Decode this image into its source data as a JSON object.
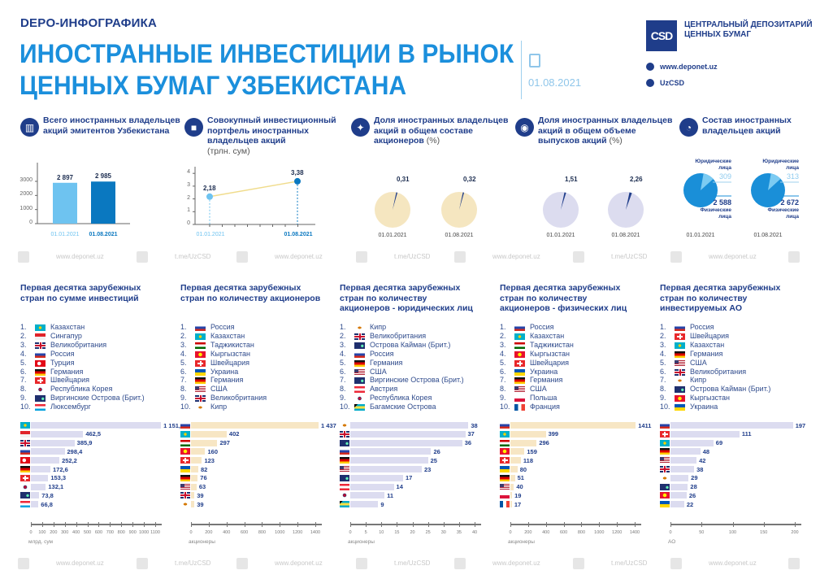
{
  "header": {
    "kicker": "DEPO-ИНФОГРАФИКА",
    "title_line1": "ИНОСТРАННЫЕ ИНВЕСТИЦИИ В РЫНОК",
    "title_line2": "ЦЕННЫХ БУМАГ УЗБЕКИСТАНА",
    "date": "01.08.2021",
    "logo_text": "CSD",
    "org_line1": "ЦЕНТРАЛЬНЫЙ ДЕПОЗИТАРИЙ",
    "org_line2": "ЦЕННЫХ БУМАГ",
    "website": "www.deponet.uz",
    "telegram": "UzCSD"
  },
  "watermark": [
    "www.deponet.uz",
    "t.me/UzCSD"
  ],
  "colors": {
    "navy": "#1f3d8a",
    "blue": "#1b8fdc",
    "light_blue": "#6ec3f0",
    "dark_blue": "#0a78c0",
    "lavender": "#dcdcf0",
    "beige": "#f7e6c4",
    "pie_beige": "#f5e6c0",
    "pie_lavender": "#dcdcef"
  },
  "chart_data": [
    {
      "type": "bar",
      "id": "owners",
      "icon": "buildings-icon",
      "title": "Всего иностранных владельцев акций эмитентов Узбекистана",
      "categories": [
        "01.01.2021",
        "01.08.2021"
      ],
      "values": [
        2897,
        2985
      ],
      "value_labels": [
        "2 897",
        "2 985"
      ],
      "yticks": [
        "0",
        "1000",
        "2000",
        "3000"
      ],
      "ylim": [
        0,
        3000
      ]
    },
    {
      "type": "line",
      "id": "portfolio",
      "icon": "briefcase-icon",
      "title": "Совокупный инвестиционный портфель иностранных владельцев акций",
      "unit": "(трлн. сум)",
      "categories": [
        "01.01.2021",
        "01.08.2021"
      ],
      "values": [
        2.18,
        3.38
      ],
      "value_labels": [
        "2,18",
        "3,38"
      ],
      "yticks": [
        "0",
        "1",
        "2",
        "3",
        "4"
      ],
      "ylim": [
        0,
        4
      ]
    },
    {
      "type": "pie",
      "id": "share-holders",
      "icon": "people-icon",
      "title": "Доля иностранных владельцев акций в общем составе акционеров",
      "unit": "(%)",
      "categories": [
        "01.01.2021",
        "01.08.2021"
      ],
      "values": [
        0.31,
        0.32
      ],
      "value_labels": [
        "0,31",
        "0,32"
      ]
    },
    {
      "type": "pie",
      "id": "share-volume",
      "icon": "coins-icon",
      "title": "Доля иностранных владельцев акций в общем объеме выпусков акций",
      "unit": "(%)",
      "categories": [
        "01.01.2021",
        "01.08.2021"
      ],
      "values": [
        1.51,
        2.26
      ],
      "value_labels": [
        "1,51",
        "2,26"
      ]
    },
    {
      "type": "pie",
      "id": "composition",
      "icon": "pie-chart-icon",
      "title": "Состав иностранных владельцев акций",
      "categories": [
        "01.01.2021",
        "01.08.2021"
      ],
      "series": [
        {
          "name": "Юридические лица",
          "values": [
            309,
            313
          ]
        },
        {
          "name": "Физические лица",
          "values": [
            2588,
            2672
          ]
        }
      ],
      "legal_label_1": "Юридические",
      "legal_label_2": "лица",
      "phys_label_1": "Физические",
      "phys_label_2": "лица",
      "legal_values": [
        "309",
        "313"
      ],
      "phys_values": [
        "2 588",
        "2 672"
      ]
    },
    {
      "type": "bar",
      "id": "top-invest",
      "title_1": "Первая десятка зарубежных",
      "title_2": "стран по сумме инвестиций",
      "title_3": "",
      "color": "lavender",
      "categories": [
        "Казахстан",
        "Сингапур",
        "Великобритания",
        "Россия",
        "Турция",
        "Германия",
        "Швейцария",
        "Республика Корея",
        "Виргинские Острова (Брит.)",
        "Люксембург"
      ],
      "flags": [
        "kz",
        "sg",
        "gb",
        "ru",
        "tr",
        "de",
        "ch",
        "kr",
        "vg",
        "lu"
      ],
      "values": [
        1151.4,
        462.5,
        385.9,
        298.4,
        252.2,
        172.6,
        153.3,
        132.1,
        73.8,
        66.8
      ],
      "value_labels": [
        "1 151,4",
        "462,5",
        "385,9",
        "298,4",
        "252,2",
        "172,6",
        "153,3",
        "132,1",
        "73,8",
        "66,8"
      ],
      "xticks": [
        "0",
        "100",
        "200",
        "300",
        "400",
        "500",
        "600",
        "700",
        "800",
        "900",
        "1000",
        "1100"
      ],
      "xlim": [
        0,
        1100
      ],
      "xlabel": "млрд. сум"
    },
    {
      "type": "bar",
      "id": "top-holders",
      "title_1": "Первая десятка зарубежных",
      "title_2": "стран по количеству акционеров",
      "title_3": "",
      "color": "beige",
      "categories": [
        "Россия",
        "Казахстан",
        "Таджикистан",
        "Кыргызстан",
        "Швейцария",
        "Украина",
        "Германия",
        "США",
        "Великобритания",
        "Кипр"
      ],
      "flags": [
        "ru",
        "kz",
        "tj",
        "kg",
        "ch",
        "ua",
        "de",
        "us",
        "gb",
        "cy"
      ],
      "values": [
        1437,
        402,
        297,
        160,
        123,
        82,
        76,
        63,
        39,
        39
      ],
      "value_labels": [
        "1 437",
        "402",
        "297",
        "160",
        "123",
        "82",
        "76",
        "63",
        "39",
        "39"
      ],
      "xticks": [
        "0",
        "200",
        "400",
        "600",
        "800",
        "1000",
        "1200",
        "1400"
      ],
      "xlim": [
        0,
        1400
      ],
      "xlabel": "акционеры"
    },
    {
      "type": "bar",
      "id": "top-legal",
      "title_1": "Первая десятка зарубежных",
      "title_2": "стран по количеству",
      "title_3": "акционеров - юридических лиц",
      "color": "lavender",
      "categories": [
        "Кипр",
        "Великобритания",
        "Острова Кайман (Брит.)",
        "Россия",
        "Германия",
        "США",
        "Виргинские Острова (Брит.)",
        "Австрия",
        "Республика Корея",
        "Багамские Острова"
      ],
      "flags": [
        "cy",
        "gb",
        "ky",
        "ru",
        "de",
        "us",
        "vg",
        "at",
        "kr",
        "bs"
      ],
      "values": [
        38,
        37,
        36,
        26,
        25,
        23,
        17,
        14,
        11,
        9
      ],
      "value_labels": [
        "38",
        "37",
        "36",
        "26",
        "25",
        "23",
        "17",
        "14",
        "11",
        "9"
      ],
      "xticks": [
        "0",
        "5",
        "10",
        "15",
        "20",
        "25",
        "30",
        "35",
        "40"
      ],
      "xlim": [
        0,
        40
      ],
      "xlabel": "акционеры"
    },
    {
      "type": "bar",
      "id": "top-physical",
      "title_1": "Первая десятка зарубежных",
      "title_2": "стран по количеству",
      "title_3": "акционеров - физических лиц",
      "color": "beige",
      "categories": [
        "Россия",
        "Казахстан",
        "Таджикистан",
        "Кыргызстан",
        "Швейцария",
        "Украина",
        "Германия",
        "США",
        "Польша",
        "Франция"
      ],
      "flags": [
        "ru",
        "kz",
        "tj",
        "kg",
        "ch",
        "ua",
        "de",
        "us",
        "pl",
        "fr"
      ],
      "values": [
        1411,
        399,
        296,
        159,
        118,
        80,
        51,
        40,
        19,
        17
      ],
      "value_labels": [
        "1411",
        "399",
        "296",
        "159",
        "118",
        "80",
        "51",
        "40",
        "19",
        "17"
      ],
      "xticks": [
        "0",
        "200",
        "400",
        "600",
        "800",
        "1000",
        "1200",
        "1400"
      ],
      "xlim": [
        0,
        1400
      ],
      "xlabel": "акционеры"
    },
    {
      "type": "bar",
      "id": "top-companies",
      "title_1": "Первая десятка зарубежных",
      "title_2": "стран  по количеству",
      "title_3": "инвестируемых АО",
      "color": "lavender",
      "categories": [
        "Россия",
        "Швейцария",
        "Казахстан",
        "Германия",
        "США",
        "Великобритания",
        "Кипр",
        "Острова Кайман (Брит.)",
        "Кыргызстан",
        "Украина"
      ],
      "flags": [
        "ru",
        "ch",
        "kz",
        "de",
        "us",
        "gb",
        "cy",
        "ky",
        "kg",
        "ua"
      ],
      "values": [
        197,
        111,
        69,
        48,
        42,
        38,
        29,
        28,
        26,
        22
      ],
      "value_labels": [
        "197",
        "111",
        "69",
        "48",
        "42",
        "38",
        "29",
        "28",
        "26",
        "22"
      ],
      "xticks": [
        "0",
        "50",
        "100",
        "150",
        "200"
      ],
      "xlim": [
        0,
        200
      ],
      "xlabel": "АО"
    }
  ]
}
